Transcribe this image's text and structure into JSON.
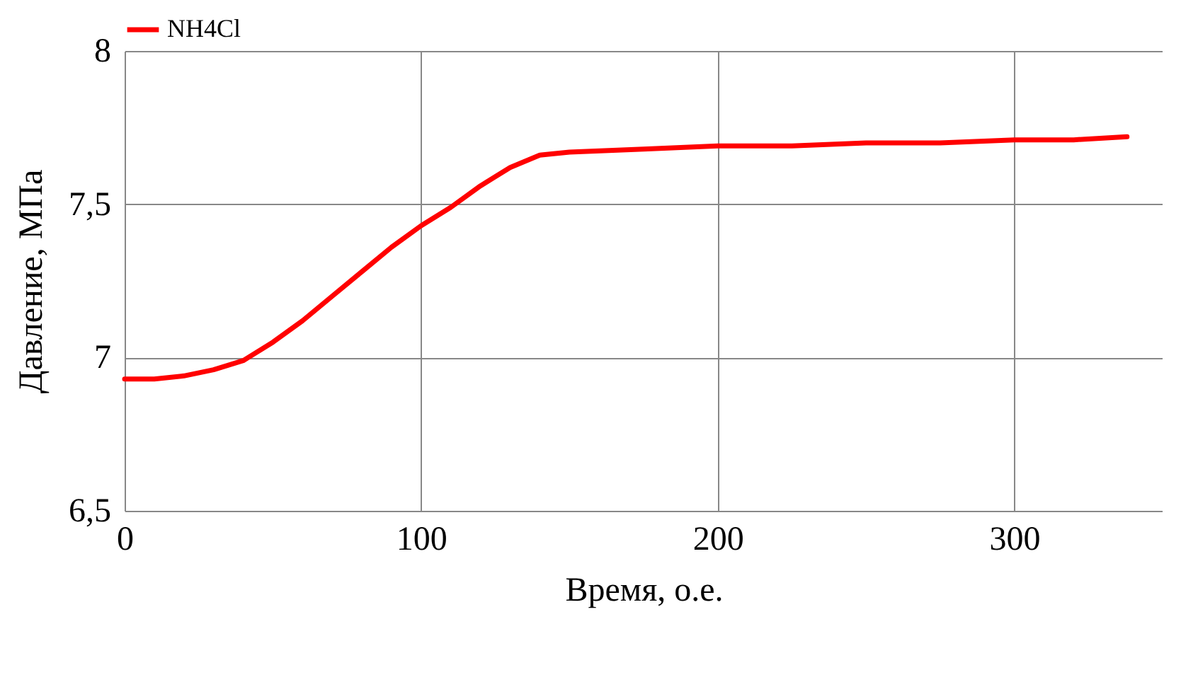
{
  "chart_data": {
    "type": "line",
    "xlabel": "Время, о.е.",
    "ylabel": "Давление, МПа",
    "x": [
      0,
      10,
      20,
      30,
      40,
      50,
      60,
      70,
      80,
      90,
      100,
      110,
      120,
      130,
      140,
      150,
      175,
      200,
      225,
      250,
      275,
      300,
      320,
      338
    ],
    "series": [
      {
        "name": "NH4Cl",
        "color": "#ff0000",
        "values": [
          6.93,
          6.93,
          6.94,
          6.96,
          6.99,
          7.05,
          7.12,
          7.2,
          7.28,
          7.36,
          7.43,
          7.49,
          7.56,
          7.62,
          7.66,
          7.67,
          7.68,
          7.69,
          7.69,
          7.7,
          7.7,
          7.71,
          7.71,
          7.72
        ]
      }
    ],
    "xlim": [
      0,
      350
    ],
    "xticks": [
      0,
      100,
      200,
      300
    ],
    "ylim": [
      6.5,
      8
    ],
    "yticks": [
      {
        "value": 6.5,
        "label": "6,5"
      },
      {
        "value": 7,
        "label": "7"
      },
      {
        "value": 7.5,
        "label": "7,5"
      },
      {
        "value": 8,
        "label": "8"
      }
    ],
    "grid": true,
    "legend": "top",
    "marker": "none",
    "line_style": "solid"
  }
}
